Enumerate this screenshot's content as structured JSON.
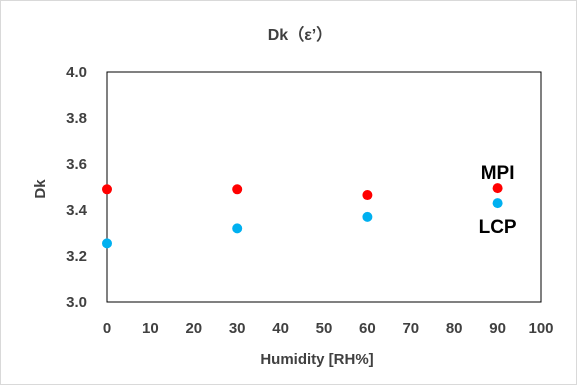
{
  "chart_data": {
    "type": "scatter",
    "title": "Dk（ε’）",
    "xlabel": "Humidity [RH%]",
    "ylabel": "Dk",
    "xlim": [
      0,
      100
    ],
    "ylim": [
      3.0,
      4.0
    ],
    "x_ticks": [
      "0",
      "10",
      "20",
      "30",
      "40",
      "50",
      "60",
      "70",
      "80",
      "90",
      "100"
    ],
    "y_ticks": [
      "3.0",
      "3.2",
      "3.4",
      "3.6",
      "3.8",
      "4.0"
    ],
    "grid": false,
    "legend": "none",
    "series": [
      {
        "name": "MPI",
        "color": "#ff0000",
        "points": [
          {
            "x": 0,
            "y": 3.49
          },
          {
            "x": 30,
            "y": 3.49
          },
          {
            "x": 60,
            "y": 3.465
          },
          {
            "x": 90,
            "y": 3.495
          }
        ]
      },
      {
        "name": "LCP",
        "color": "#00b0f0",
        "points": [
          {
            "x": 0,
            "y": 3.255
          },
          {
            "x": 30,
            "y": 3.32
          },
          {
            "x": 60,
            "y": 3.37
          },
          {
            "x": 90,
            "y": 3.43
          }
        ]
      }
    ]
  }
}
